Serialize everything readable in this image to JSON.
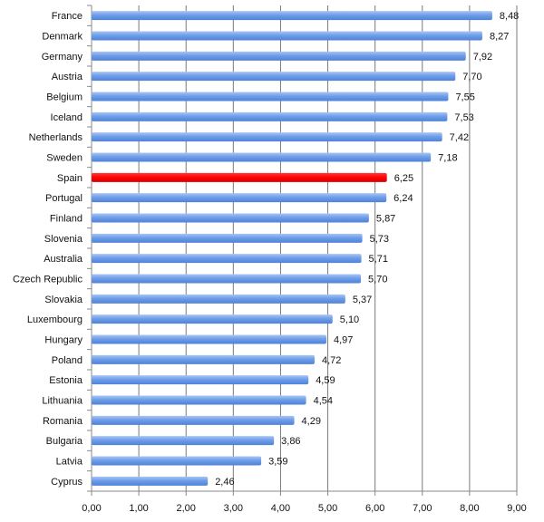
{
  "chart_data": {
    "type": "bar",
    "orientation": "horizontal",
    "categories": [
      "France",
      "Denmark",
      "Germany",
      "Austria",
      "Belgium",
      "Iceland",
      "Netherlands",
      "Sweden",
      "Spain",
      "Portugal",
      "Finland",
      "Slovenia",
      "Australia",
      "Czech Republic",
      "Slovakia",
      "Luxembourg",
      "Hungary",
      "Poland",
      "Estonia",
      "Lithuania",
      "Romania",
      "Bulgaria",
      "Latvia",
      "Cyprus"
    ],
    "values": [
      8.48,
      8.27,
      7.92,
      7.7,
      7.55,
      7.53,
      7.42,
      7.18,
      6.25,
      6.24,
      5.87,
      5.73,
      5.71,
      5.7,
      5.37,
      5.1,
      4.97,
      4.72,
      4.59,
      4.54,
      4.29,
      3.86,
      3.59,
      2.46
    ],
    "value_labels": [
      "8,48",
      "8,27",
      "7,92",
      "7,70",
      "7,55",
      "7,53",
      "7,42",
      "7,18",
      "6,25",
      "6,24",
      "5,87",
      "5,73",
      "5,71",
      "5,70",
      "5,37",
      "5,10",
      "4,97",
      "4,72",
      "4,59",
      "4,54",
      "4,29",
      "3,86",
      "3,59",
      "2,46"
    ],
    "xlim": [
      0,
      9
    ],
    "x_ticks": [
      0,
      1,
      2,
      3,
      4,
      5,
      6,
      7,
      8,
      9
    ],
    "x_tick_labels": [
      "0,00",
      "1,00",
      "2,00",
      "3,00",
      "4,00",
      "5,00",
      "6,00",
      "7,00",
      "8,00",
      "9,00"
    ],
    "grid": true,
    "title": "",
    "xlabel": "",
    "ylabel": "",
    "colors": {
      "bar": "#6f9ee8",
      "bar_highlight": "#ff0000",
      "gridline": "#7a7a7a",
      "axis": "#888888"
    },
    "highlight_category": "Spain"
  }
}
